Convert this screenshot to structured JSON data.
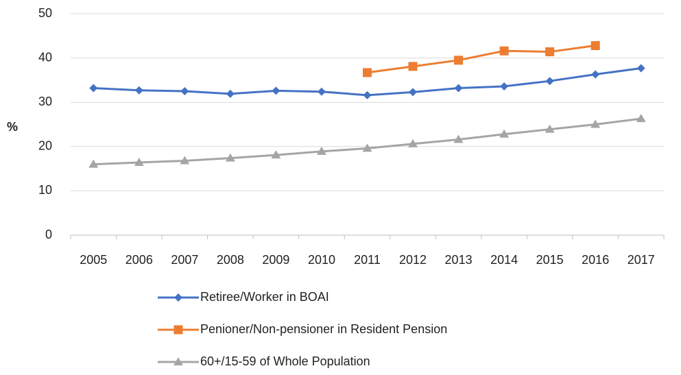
{
  "chart_data": {
    "type": "line",
    "y_label": "%",
    "categories": [
      "2005",
      "2006",
      "2007",
      "2008",
      "2009",
      "2010",
      "2011",
      "2012",
      "2013",
      "2014",
      "2015",
      "2016",
      "2017"
    ],
    "series": [
      {
        "name": "Retiree/Worker in BOAI",
        "color": "#4472c4",
        "marker": "diamond",
        "values": [
          33.2,
          32.7,
          32.5,
          31.9,
          32.6,
          32.4,
          31.6,
          32.3,
          33.2,
          33.6,
          34.8,
          36.3,
          37.7
        ]
      },
      {
        "name": "Penioner/Non-pensioner in Resident Pension",
        "color": "#ed7d31",
        "marker": "square",
        "values": [
          null,
          null,
          null,
          null,
          null,
          null,
          36.7,
          38.1,
          39.5,
          41.6,
          41.4,
          42.8,
          null
        ]
      },
      {
        "name": "60+/15-59 of Whole Population",
        "color": "#a5a5a5",
        "marker": "triangle",
        "values": [
          16.0,
          16.4,
          16.8,
          17.4,
          18.1,
          18.9,
          19.6,
          20.6,
          21.6,
          22.8,
          23.9,
          25.0,
          26.3
        ]
      }
    ],
    "ylim": [
      0,
      50
    ],
    "yticks": [
      0,
      10,
      20,
      30,
      40,
      50
    ],
    "grid": true,
    "legend": "bottom"
  }
}
